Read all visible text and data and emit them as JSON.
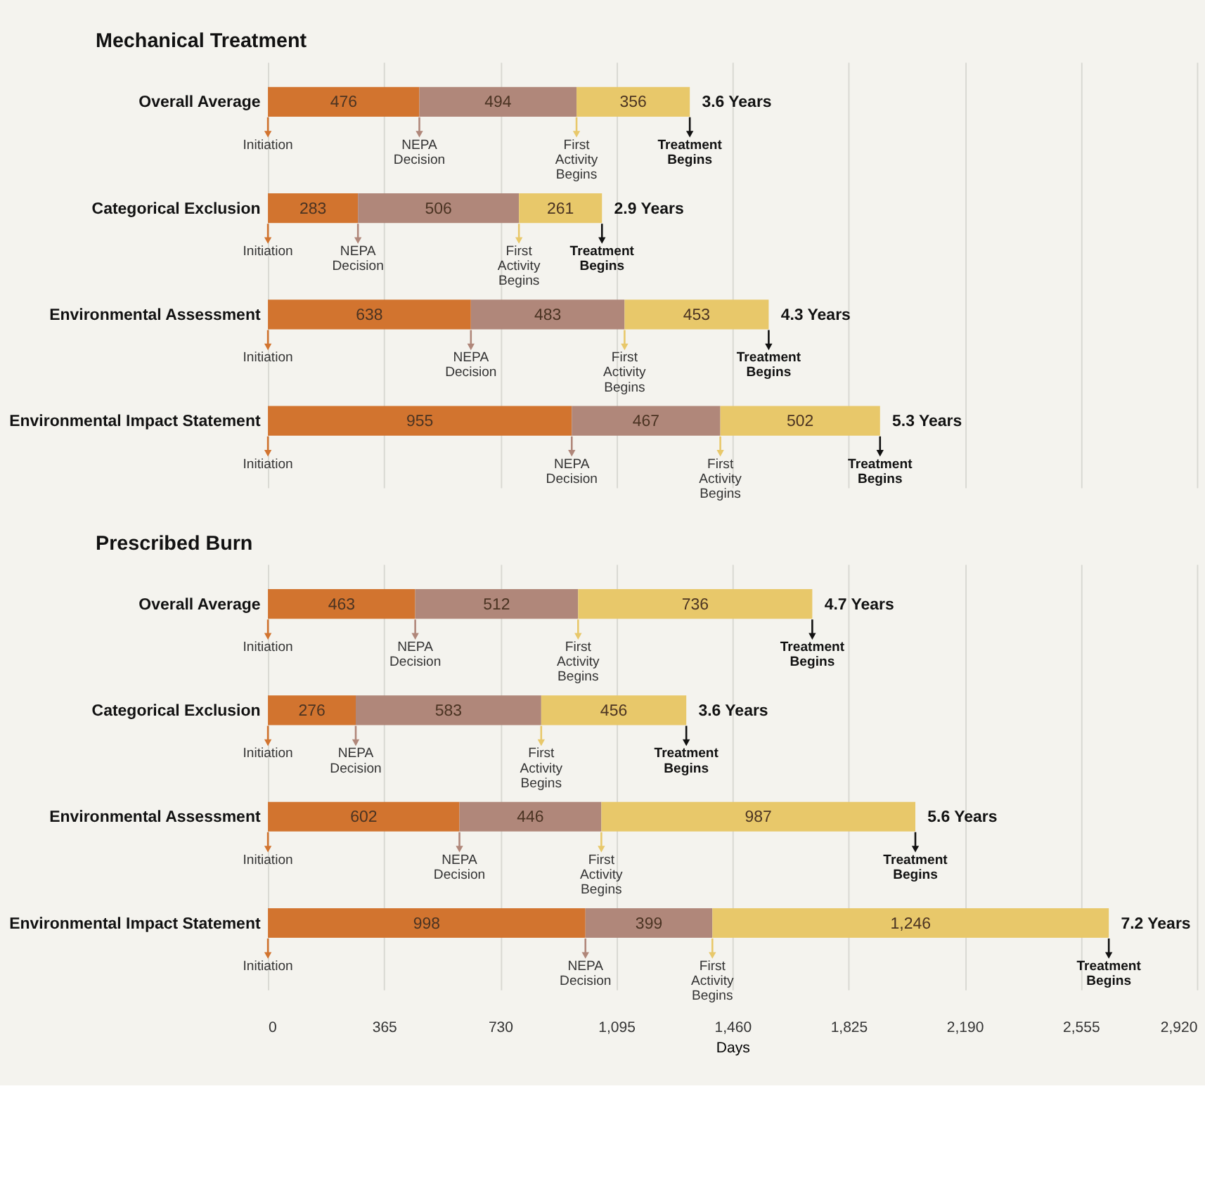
{
  "chart_data": [
    {
      "type": "bar",
      "orientation": "horizontal",
      "stacked": true,
      "title": "Mechanical Treatment",
      "categories": [
        "Overall Average",
        "Categorical Exclusion",
        "Environmental Assessment",
        "Environmental Impact Statement"
      ],
      "series": [
        {
          "color": "#d2742f",
          "values": [
            476,
            283,
            638,
            955
          ]
        },
        {
          "color": "#b0877a",
          "values": [
            494,
            506,
            483,
            467
          ]
        },
        {
          "color": "#e8c86a",
          "values": [
            356,
            261,
            453,
            502
          ]
        }
      ],
      "data_labels": true,
      "xlim": [
        0,
        2920
      ],
      "xticks": [
        0,
        365,
        730,
        1095,
        1460,
        1825,
        2190,
        2555,
        2920
      ],
      "grid": "x",
      "tick_labels": "y",
      "annotations": [
        {
          "text": "Initiation",
          "x": 0,
          "y": "Overall Average"
        },
        {
          "text": "NEPA Decision",
          "x": 476,
          "y": "Overall Average"
        },
        {
          "text": "First Activity Begins",
          "x": 970,
          "y": "Overall Average"
        },
        {
          "text": "Treatment Begins",
          "x": 1326,
          "y": "Overall Average"
        },
        {
          "text": "3.6 Years",
          "x": 1326,
          "y": "Overall Average"
        },
        {
          "text": "Initiation",
          "x": 0,
          "y": "Categorical Exclusion"
        },
        {
          "text": "NEPA Decision",
          "x": 283,
          "y": "Categorical Exclusion"
        },
        {
          "text": "First Activity Begins",
          "x": 789,
          "y": "Categorical Exclusion"
        },
        {
          "text": "Treatment Begins",
          "x": 1050,
          "y": "Categorical Exclusion"
        },
        {
          "text": "2.9 Years",
          "x": 1050,
          "y": "Categorical Exclusion"
        },
        {
          "text": "Initiation",
          "x": 0,
          "y": "Environmental Assessment"
        },
        {
          "text": "NEPA Decision",
          "x": 638,
          "y": "Environmental Assessment"
        },
        {
          "text": "First Activity Begins",
          "x": 1121,
          "y": "Environmental Assessment"
        },
        {
          "text": "Treatment Begins",
          "x": 1574,
          "y": "Environmental Assessment"
        },
        {
          "text": "4.3 Years",
          "x": 1574,
          "y": "Environmental Assessment"
        },
        {
          "text": "Initiation",
          "x": 0,
          "y": "Environmental Impact Statement"
        },
        {
          "text": "NEPA Decision",
          "x": 955,
          "y": "Environmental Impact Statement"
        },
        {
          "text": "First Activity Begins",
          "x": 1422,
          "y": "Environmental Impact Statement"
        },
        {
          "text": "Treatment Begins",
          "x": 1924,
          "y": "Environmental Impact Statement"
        },
        {
          "text": "5.3 Years",
          "x": 1924,
          "y": "Environmental Impact Statement"
        }
      ]
    },
    {
      "type": "bar",
      "orientation": "horizontal",
      "stacked": true,
      "title": "Prescribed Burn",
      "xlabel": "Days",
      "categories": [
        "Overall Average",
        "Categorical Exclusion",
        "Environmental Assessment",
        "Environmental Impact Statement"
      ],
      "series": [
        {
          "color": "#d2742f",
          "values": [
            463,
            276,
            602,
            998
          ],
          "value_labels": [
            "463",
            "276",
            "602",
            "998"
          ]
        },
        {
          "color": "#b0877a",
          "values": [
            512,
            583,
            446,
            399
          ],
          "value_labels": [
            "512",
            "583",
            "446",
            "399"
          ]
        },
        {
          "color": "#e8c86a",
          "values": [
            736,
            456,
            987,
            1246
          ],
          "value_labels": [
            "736",
            "456",
            "987",
            "1,246"
          ]
        }
      ],
      "xlim": [
        0,
        2920
      ],
      "xticks": [
        0,
        365,
        730,
        {
          "value": 1095,
          "label": "1,095"
        },
        {
          "value": 1460,
          "label": "1,460"
        },
        {
          "value": 1825,
          "label": "1,825"
        },
        {
          "value": 2190,
          "label": "2,190"
        },
        {
          "value": 2555,
          "label": "2,555"
        },
        {
          "value": 2920,
          "label": "2,920"
        }
      ],
      "grid": "x",
      "annotations": [
        {
          "text": "Initiation",
          "x": 0,
          "y": "Overall Average"
        },
        {
          "text": "NEPA Decision",
          "x": 463,
          "y": "Overall Average"
        },
        {
          "text": "First Activity Begins",
          "x": 975,
          "y": "Overall Average"
        },
        {
          "text": "Treatment Begins",
          "x": 1711,
          "y": "Overall Average"
        },
        {
          "text": "4.7 Years",
          "x": 1711,
          "y": "Overall Average"
        },
        {
          "text": "Initiation",
          "x": 0,
          "y": "Categorical Exclusion"
        },
        {
          "text": "NEPA Decision",
          "x": 276,
          "y": "Categorical Exclusion"
        },
        {
          "text": "First Activity Begins",
          "x": 859,
          "y": "Categorical Exclusion"
        },
        {
          "text": "Treatment Begins",
          "x": 1315,
          "y": "Categorical Exclusion"
        },
        {
          "text": "3.6 Years",
          "x": 1315,
          "y": "Categorical Exclusion"
        },
        {
          "text": "Initiation",
          "x": 0,
          "y": "Environmental Assessment"
        },
        {
          "text": "NEPA Decision",
          "x": 602,
          "y": "Environmental Assessment"
        },
        {
          "text": "First Activity Begins",
          "x": 1048,
          "y": "Environmental Assessment"
        },
        {
          "text": "Treatment Begins",
          "x": 2035,
          "y": "Environmental Assessment"
        },
        {
          "text": "5.6 Years",
          "x": 2035,
          "y": "Environmental Assessment"
        },
        {
          "text": "Initiation",
          "x": 0,
          "y": "Environmental Impact Statement"
        },
        {
          "text": "NEPA Decision",
          "x": 998,
          "y": "Environmental Impact Statement"
        },
        {
          "text": "First Activity Begins",
          "x": 1397,
          "y": "Environmental Impact Statement"
        },
        {
          "text": "Treatment Begins",
          "x": 2643,
          "y": "Environmental Impact Statement"
        },
        {
          "text": "7.2 Years",
          "x": 2643,
          "y": "Environmental Impact Statement"
        }
      ]
    }
  ]
}
